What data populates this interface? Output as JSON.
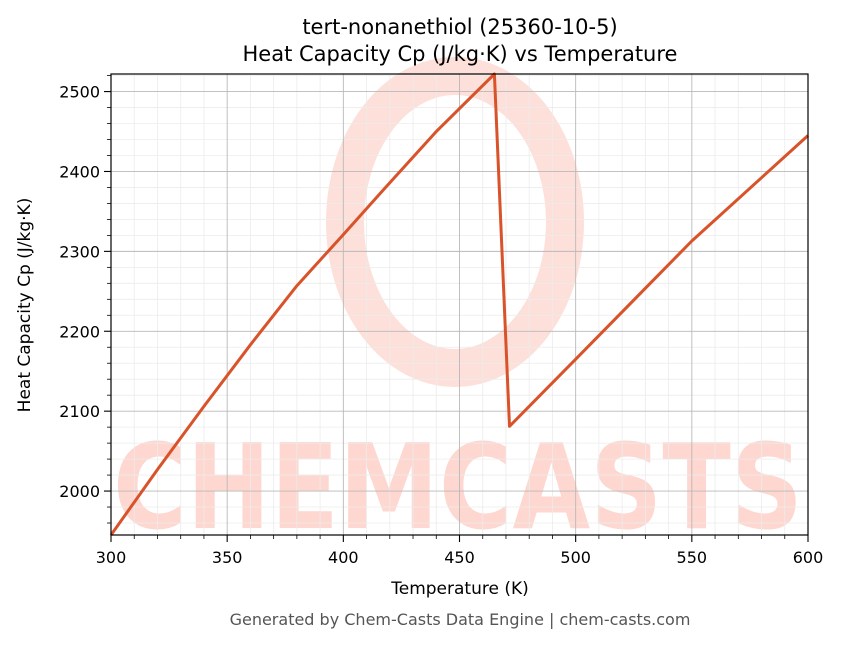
{
  "chart_data": {
    "type": "line",
    "title": "tert-nonanethiol (25360-10-5)",
    "subtitle": "Heat Capacity Cp (J/kg·K) vs Temperature",
    "xlabel": "Temperature (K)",
    "ylabel": "Heat Capacity Cp (J/kg·K)",
    "xlim": [
      300,
      600
    ],
    "ylim": [
      1945,
      2522
    ],
    "x_ticks": [
      300,
      350,
      400,
      450,
      500,
      550,
      600
    ],
    "y_ticks": [
      2000,
      2100,
      2200,
      2300,
      2400,
      2500
    ],
    "grid": true,
    "line_color": "#d9532a",
    "series": [
      {
        "points": [
          [
            300,
            1945
          ],
          [
            320,
            2027
          ],
          [
            340,
            2106
          ],
          [
            360,
            2183
          ],
          [
            380,
            2257
          ],
          [
            400,
            2321
          ],
          [
            420,
            2386
          ],
          [
            440,
            2450
          ],
          [
            465,
            2522
          ],
          [
            471.5,
            2081
          ],
          [
            500,
            2165
          ],
          [
            550,
            2313
          ],
          [
            600,
            2445
          ]
        ]
      }
    ]
  },
  "footer": "Generated by Chem-Casts Data Engine | chem-casts.com",
  "watermark": "CHEMCASTS"
}
